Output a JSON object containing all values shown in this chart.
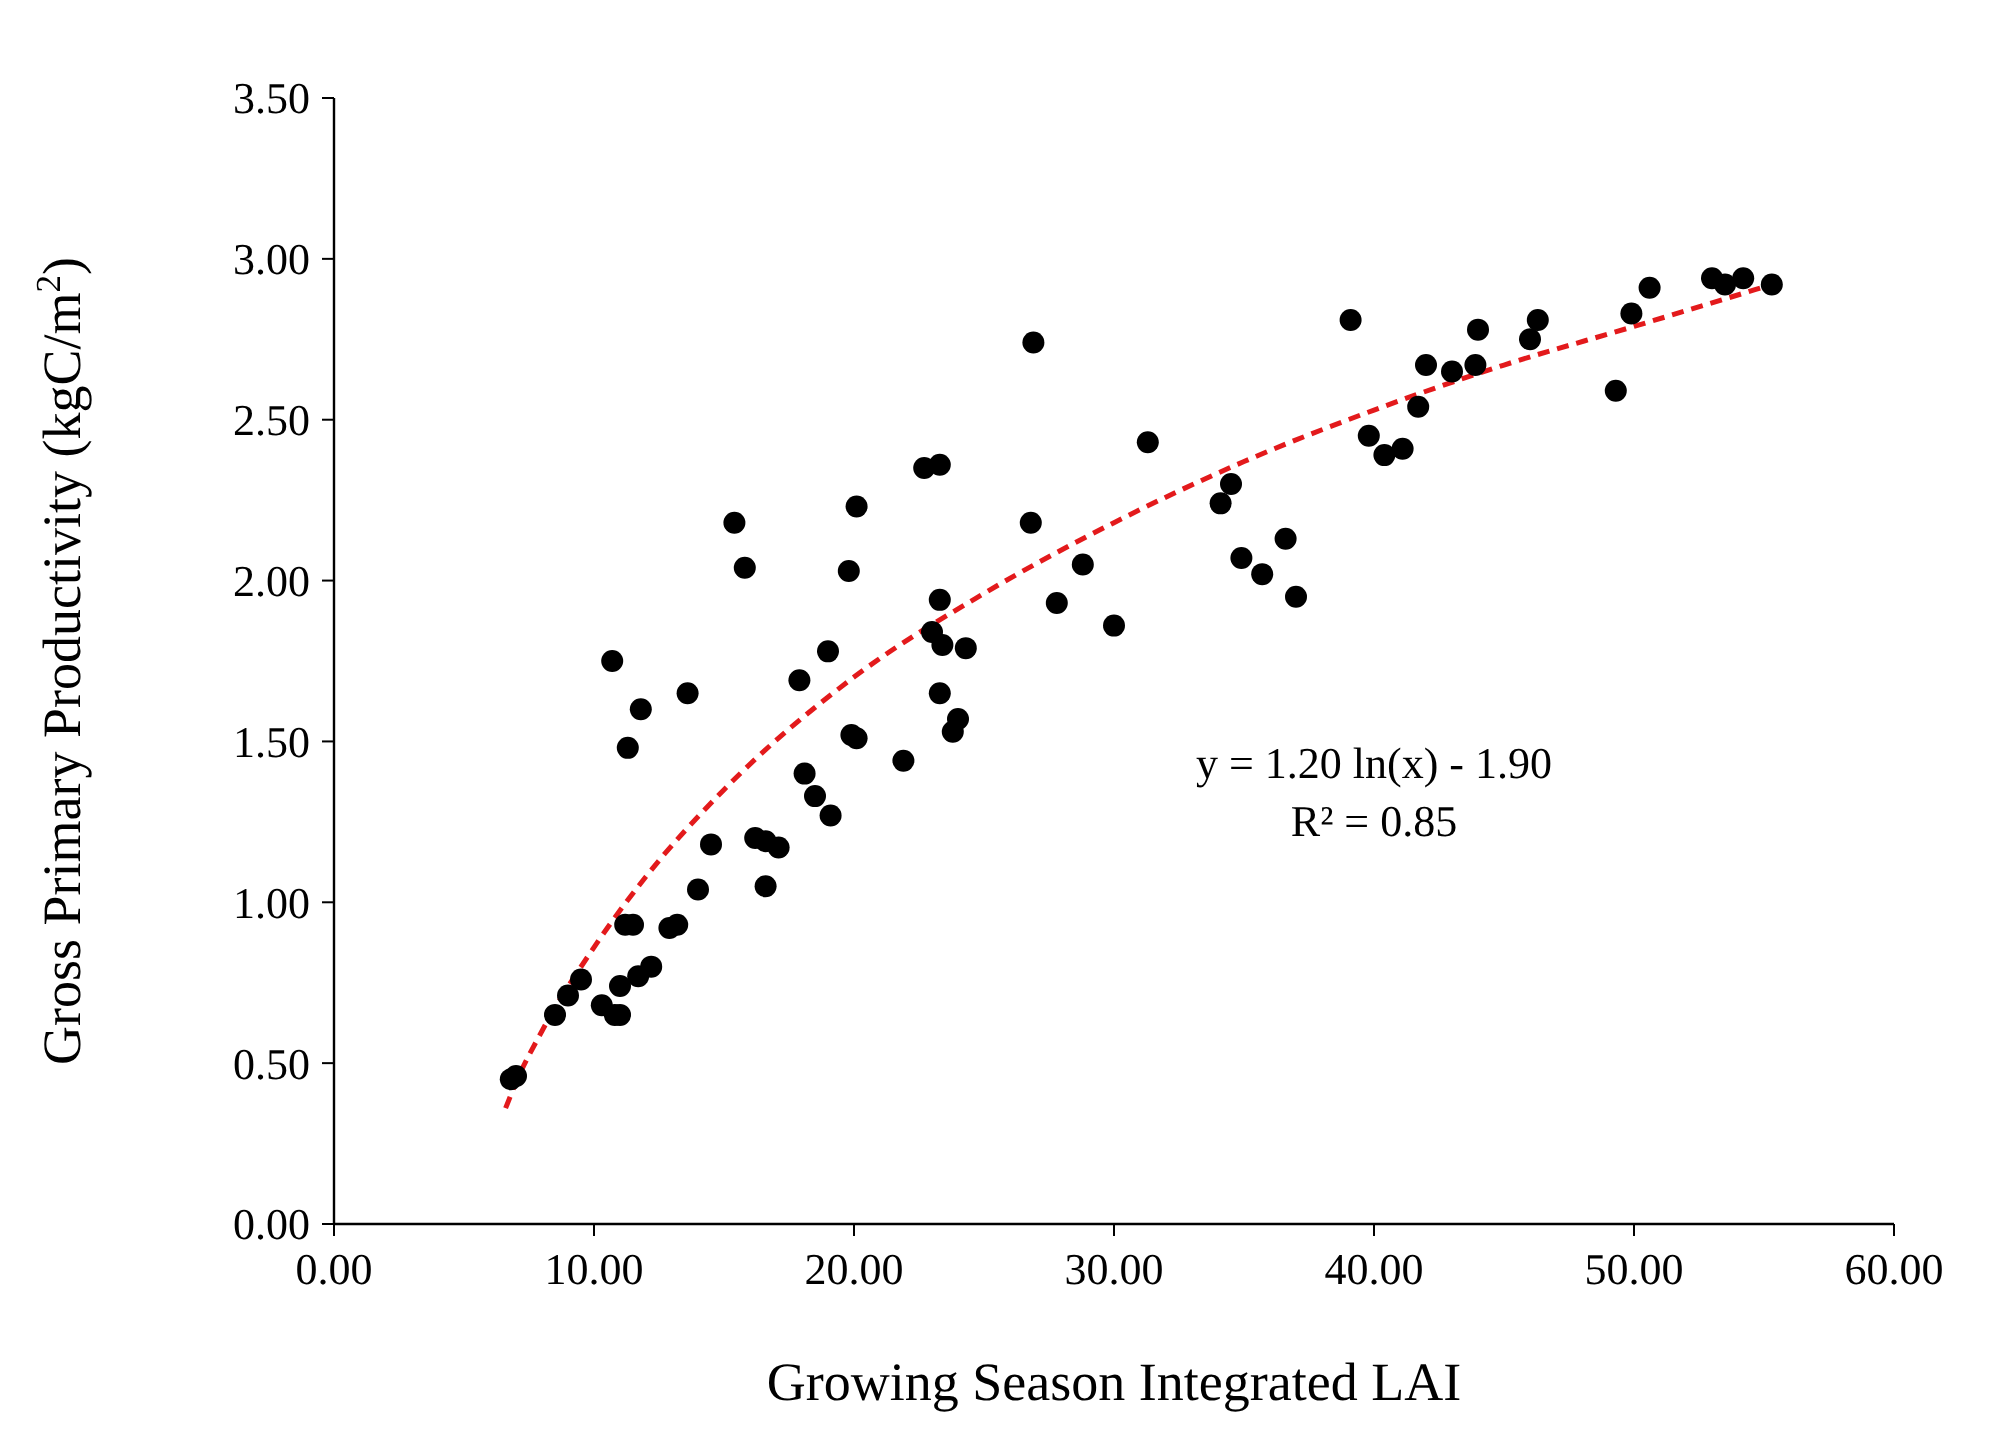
{
  "chart_data": {
    "type": "scatter",
    "xlabel": "Growing Season Integrated LAI",
    "ylabel": "Gross Primary Productivity (kgC/m$^{2}$)",
    "xlim": [
      0,
      60
    ],
    "ylim": [
      0,
      3.5
    ],
    "xticks": [
      {
        "value": 0,
        "label": "0.00"
      },
      {
        "value": 10,
        "label": "10.00"
      },
      {
        "value": 20,
        "label": "20.00"
      },
      {
        "value": 30,
        "label": "30.00"
      },
      {
        "value": 40,
        "label": "40.00"
      },
      {
        "value": 50,
        "label": "50.00"
      },
      {
        "value": 60,
        "label": "60.00"
      }
    ],
    "yticks": [
      {
        "value": 0,
        "label": "0.00"
      },
      {
        "value": 0.5,
        "label": "0.50"
      },
      {
        "value": 1,
        "label": "1.00"
      },
      {
        "value": 1.5,
        "label": "1.50"
      },
      {
        "value": 2,
        "label": "2.00"
      },
      {
        "value": 2.5,
        "label": "2.50"
      },
      {
        "value": 3,
        "label": "3.00"
      },
      {
        "value": 3.5,
        "label": "3.50"
      }
    ],
    "grid": false,
    "marker": "circle",
    "annotations": [
      "y = 1.20 ln(x) - 1.90",
      "R² = 0.85"
    ],
    "series": [
      {
        "color": "#000000",
        "x": [
          6.8,
          7.0,
          8.5,
          9.0,
          9.5,
          10.3,
          10.8,
          11.0,
          11.0,
          11.2,
          11.5,
          11.7,
          12.2,
          10.7,
          11.3,
          11.8,
          12.9,
          13.2,
          13.6,
          14.0,
          14.5,
          15.4,
          15.8,
          16.2,
          16.6,
          16.6,
          17.1,
          17.9,
          18.1,
          18.5,
          19.0,
          19.1,
          19.8,
          19.9,
          20.1,
          20.1,
          21.9,
          22.7,
          23.0,
          23.3,
          23.3,
          23.3,
          23.4,
          23.8,
          24.0,
          24.3,
          26.8,
          26.9,
          27.8,
          28.8,
          30.0,
          31.3,
          34.1,
          34.5,
          34.9,
          35.7,
          36.6,
          37.0,
          39.1,
          39.8,
          40.4,
          41.1,
          41.7,
          42.0,
          43.0,
          43.9,
          44.0,
          46.0,
          46.3,
          49.3,
          49.9,
          50.6,
          53.0,
          53.5,
          54.2,
          55.3
        ],
        "values": [
          0.45,
          0.46,
          0.65,
          0.71,
          0.76,
          0.68,
          0.65,
          0.65,
          0.74,
          0.93,
          0.93,
          0.77,
          0.8,
          1.75,
          1.48,
          1.6,
          0.92,
          0.93,
          1.65,
          1.04,
          1.18,
          2.18,
          2.04,
          1.2,
          1.19,
          1.05,
          1.17,
          1.69,
          1.4,
          1.33,
          1.78,
          1.27,
          2.03,
          1.52,
          1.51,
          2.23,
          1.44,
          2.35,
          1.84,
          2.36,
          1.94,
          1.65,
          1.8,
          1.53,
          1.57,
          1.79,
          2.18,
          2.74,
          1.93,
          2.05,
          1.86,
          2.43,
          2.24,
          2.3,
          2.07,
          2.02,
          2.13,
          1.95,
          2.81,
          2.45,
          2.39,
          2.41,
          2.54,
          2.67,
          2.65,
          2.67,
          2.78,
          2.75,
          2.81,
          2.59,
          2.83,
          2.91,
          2.94,
          2.92,
          2.94,
          2.92
        ]
      },
      {
        "type": "line",
        "color": "#e31a1c",
        "line_style": "dashed",
        "marker": "none",
        "x": [
          6.6,
          7,
          8,
          10,
          12,
          15,
          20,
          25,
          30,
          35,
          40,
          45,
          50,
          55.3
        ],
        "values": [
          0.36,
          0.44,
          0.6,
          0.86,
          1.08,
          1.35,
          1.7,
          1.96,
          2.18,
          2.37,
          2.53,
          2.67,
          2.79,
          2.92
        ]
      }
    ]
  }
}
